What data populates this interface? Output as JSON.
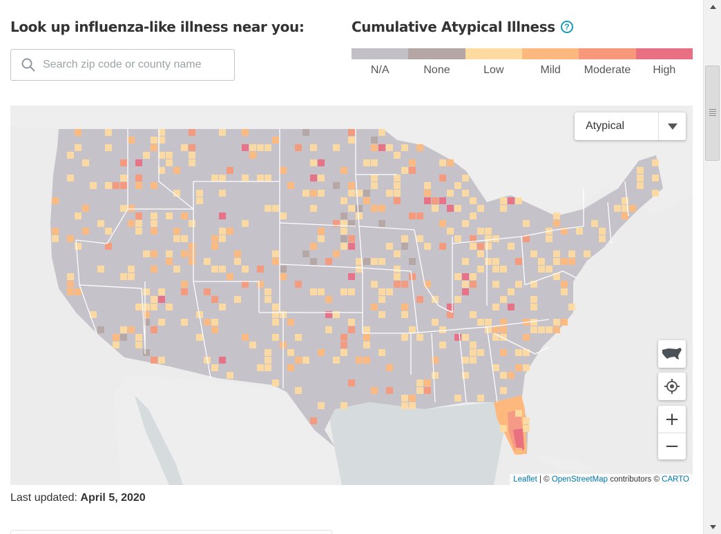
{
  "lookup": {
    "title": "Look up influenza-like illness near you:",
    "search_placeholder": "Search zip code or county name",
    "search_value": ""
  },
  "legend": {
    "title": "Cumulative Atypical Illness",
    "help_icon": "question-circle-icon",
    "items": [
      {
        "label": "N/A",
        "color": "#c2bfc7"
      },
      {
        "label": "None",
        "color": "#b4a6a4"
      },
      {
        "label": "Low",
        "color": "#fddba0"
      },
      {
        "label": "Mild",
        "color": "#fdb97d"
      },
      {
        "label": "Moderate",
        "color": "#f7987a"
      },
      {
        "label": "High",
        "color": "#e86f84"
      }
    ]
  },
  "map": {
    "layer_select": {
      "selected": "Atypical"
    },
    "controls": {
      "us_view_icon": "usa-map-icon",
      "locate_icon": "crosshair-icon",
      "zoom_in": "+",
      "zoom_out": "−"
    },
    "attribution": {
      "leaflet": "Leaflet",
      "separator": " | © ",
      "osm": "OpenStreetMap",
      "contributors": " contributors © ",
      "carto": "CARTO"
    },
    "colors": {
      "land": "#f2f2f2",
      "water": "#d4dadc",
      "border": "#ffffff"
    }
  },
  "footer": {
    "updated_label": "Last updated: ",
    "updated_value": "April 5, 2020"
  }
}
